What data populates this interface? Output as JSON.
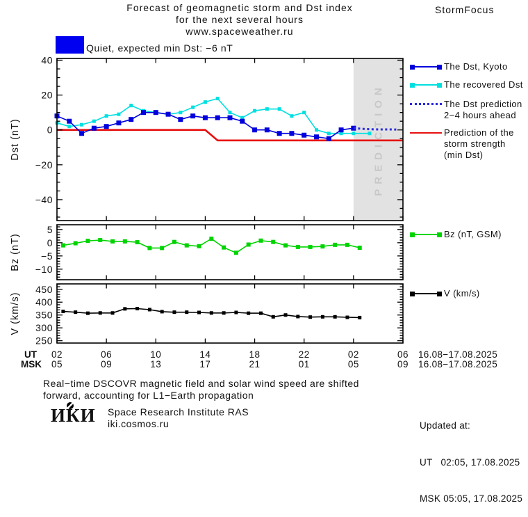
{
  "header": {
    "title_line1": "Forecast of geomagnetic storm and Dst index",
    "title_line2": "for the next several hours",
    "title_line3": "www.spaceweather.ru",
    "brand": "StormFocus"
  },
  "status": {
    "label": "Quiet, expected min Dst: −6 nT",
    "swatch_color": "#0000f0"
  },
  "colors": {
    "kyoto": "#0000dd",
    "recovered": "#00e0e0",
    "prediction": "#2a2ae0",
    "storm": "#e81010",
    "bz": "#00d400",
    "v": "#000000",
    "band_fill": "#e2e2e2",
    "band_text": "#c8c8c8"
  },
  "legend": {
    "dst_kyoto": "The Dst, Kyoto",
    "recovered": "The recovered Dst",
    "prediction_line1": "The Dst prediction",
    "prediction_line2": "2−4 hours ahead",
    "storm_line1": "Prediction of the",
    "storm_line2": "storm strength",
    "storm_line3": "(min Dst)",
    "bz": "Bz (nT, GSM)",
    "v": "V (km/s)"
  },
  "xaxis": {
    "tick_hours": [
      0,
      4,
      8,
      12,
      16,
      20,
      24,
      28
    ],
    "ut_label": "UT",
    "msk_label": "MSK",
    "ut_ticks": [
      "02",
      "06",
      "10",
      "14",
      "18",
      "22",
      "02",
      "06"
    ],
    "msk_ticks": [
      "05",
      "09",
      "13",
      "17",
      "21",
      "01",
      "05",
      "09"
    ],
    "ut_date": "16.08−17.08.2025",
    "msk_date": "16.08−17.08.2025"
  },
  "chart_data": [
    {
      "id": "dst",
      "type": "line",
      "ylabel": "Dst (nT)",
      "ylim": [
        -52,
        41
      ],
      "yticks_major": [
        40,
        20,
        0,
        -20,
        -40
      ],
      "ytick_minor_step": 5,
      "xlim_hours": [
        0,
        28
      ],
      "grid": false,
      "prediction_band": {
        "from_hour": 24,
        "to_hour": 28,
        "label": "PREDICTION"
      },
      "series": [
        {
          "name": "Prediction of the storm strength (min Dst)",
          "color_key": "storm",
          "style": "solid",
          "width": 2.6,
          "marker": 0,
          "x": [
            0,
            12,
            13,
            28
          ],
          "values": [
            0,
            0,
            -6,
            -6
          ]
        },
        {
          "name": "The recovered Dst",
          "color_key": "recovered",
          "style": "solid",
          "width": 1.6,
          "marker": 5,
          "x": [
            0,
            1,
            2,
            3,
            4,
            5,
            6,
            7,
            8,
            9,
            10,
            11,
            12,
            13,
            14,
            15,
            16,
            17,
            18,
            19,
            20,
            21,
            22,
            23,
            24,
            25.3
          ],
          "values": [
            4,
            2,
            3,
            5,
            8,
            9,
            14,
            11,
            10,
            9,
            10,
            13,
            16,
            18,
            10,
            7,
            11,
            12,
            12,
            8,
            10,
            0,
            -2,
            -2,
            -2,
            -2
          ]
        },
        {
          "name": "The Dst, Kyoto",
          "color_key": "kyoto",
          "style": "solid",
          "width": 1.6,
          "marker": 7,
          "x_start": 0,
          "x_step": 1,
          "values": [
            8,
            5,
            -2,
            1,
            2,
            4,
            6,
            10,
            10,
            9,
            6,
            8,
            7,
            7,
            7,
            5,
            0,
            0,
            -2,
            -2,
            -3,
            -4,
            -5,
            0,
            1
          ]
        },
        {
          "name": "The Dst prediction 2−4 hours ahead",
          "color_key": "prediction",
          "style": "dotted",
          "width": 3,
          "marker": 0,
          "x": [
            24,
            25,
            26,
            27,
            27.6
          ],
          "values": [
            1,
            0.5,
            0.3,
            0.3,
            0.2
          ]
        }
      ]
    },
    {
      "id": "bz",
      "type": "line",
      "ylabel": "Bz (nT)",
      "ylim": [
        -14,
        6.8
      ],
      "yticks_major": [
        5,
        0,
        -5,
        -10
      ],
      "ytick_minor_step": 1,
      "xlim_hours": [
        0,
        28
      ],
      "grid": false,
      "series": [
        {
          "name": "Bz (nT, GSM)",
          "color_key": "bz",
          "style": "solid",
          "width": 1.6,
          "marker": 6,
          "x_start": 0.5,
          "x_step": 1,
          "values": [
            -1,
            -0.2,
            0.7,
            1,
            0.5,
            0.5,
            0.2,
            -2,
            -2,
            0.3,
            -1,
            -1.3,
            1.5,
            -1.8,
            -3.8,
            -0.7,
            0.8,
            0.3,
            -1,
            -1.6,
            -1.6,
            -1.4,
            -0.8,
            -0.8,
            -1.9
          ]
        }
      ]
    },
    {
      "id": "v",
      "type": "line",
      "ylabel": "V (km/s)",
      "ylim": [
        241,
        471
      ],
      "yticks_major": [
        450,
        400,
        350,
        300,
        250
      ],
      "ytick_minor_step": 10,
      "xlim_hours": [
        0,
        28
      ],
      "grid": false,
      "series": [
        {
          "name": "V (km/s)",
          "color_key": "v",
          "style": "solid",
          "width": 1.6,
          "marker": 5,
          "x_start": 0.5,
          "x_step": 1,
          "values": [
            364,
            361,
            357,
            358,
            358,
            374,
            375,
            371,
            363,
            361,
            361,
            360,
            358,
            358,
            360,
            357,
            357,
            343,
            350,
            344,
            342,
            343,
            343,
            341,
            340
          ]
        }
      ]
    }
  ],
  "footer": {
    "note_line1": "Real−time DSCOVR magnetic field and solar wind speed are shifted",
    "note_line2": "forward, accounting for L1−Earth propagation",
    "logo_text": "ИКИ",
    "institute": "Space Research Institute RAS",
    "website": "iki.cosmos.ru",
    "updated_label": "Updated at:",
    "updated_ut": "UT   02:05, 17.08.2025",
    "updated_msk": "MSK 05:05, 17.08.2025"
  }
}
